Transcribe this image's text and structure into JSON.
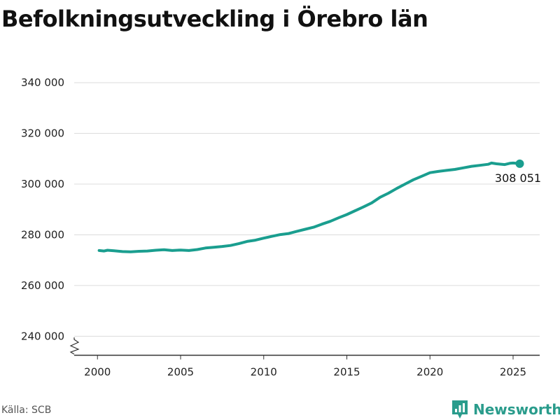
{
  "title": "Befolkningsutveckling i Örebro län",
  "source": "Källa: SCB",
  "brand": {
    "name": "Newsworthy",
    "icon": "newsworthy-logo-icon",
    "color": "#2a9c8c"
  },
  "chart_data": {
    "type": "line",
    "title": "Befolkningsutveckling i Örebro län",
    "xlabel": "",
    "ylabel": "",
    "xlim": [
      1998.6,
      2026.6
    ],
    "ylim": [
      232500,
      345000
    ],
    "y_ticks": [
      240000,
      260000,
      280000,
      300000,
      320000,
      340000
    ],
    "y_tick_labels": [
      "240 000",
      "260 000",
      "280 000",
      "300 000",
      "320 000",
      "340 000"
    ],
    "x_ticks": [
      2000,
      2005,
      2010,
      2015,
      2020,
      2025
    ],
    "x_tick_labels": [
      "2000",
      "2005",
      "2010",
      "2015",
      "2020",
      "2025"
    ],
    "grid": true,
    "axis_break": true,
    "line_color": "#1a9e8f",
    "end_label": "308 051",
    "series": [
      {
        "x": [
          2000.1,
          2000.4,
          2000.6,
          2001.0,
          2001.5,
          2002.0,
          2002.5,
          2003.0,
          2003.5,
          2004.0,
          2004.5,
          2005.0,
          2005.5,
          2006.0,
          2006.5,
          2007.0,
          2007.5,
          2008.0,
          2008.5,
          2009.0,
          2009.5,
          2010.0,
          2010.5,
          2011.0,
          2011.5,
          2012.0,
          2012.5,
          2013.0,
          2013.5,
          2014.0,
          2014.5,
          2015.0,
          2015.5,
          2016.0,
          2016.5,
          2017.0,
          2017.5,
          2018.0,
          2018.5,
          2019.0,
          2019.5,
          2020.0,
          2020.5,
          2021.0,
          2021.5,
          2022.0,
          2022.5,
          2023.0,
          2023.5,
          2023.7,
          2024.0,
          2024.5,
          2024.8,
          2025.0,
          2025.4
        ],
        "y": [
          273800,
          273600,
          273900,
          273700,
          273400,
          273300,
          273500,
          273600,
          273900,
          274100,
          273800,
          274000,
          273800,
          274200,
          274800,
          275100,
          275400,
          275800,
          276500,
          277400,
          277900,
          278700,
          279400,
          280100,
          280500,
          281400,
          282200,
          283000,
          284200,
          285300,
          286700,
          288000,
          289500,
          291000,
          292600,
          294800,
          296400,
          298300,
          300000,
          301700,
          303100,
          304500,
          305000,
          305400,
          305800,
          306400,
          307000,
          307400,
          307800,
          308300,
          308000,
          307700,
          308200,
          308300,
          308051
        ]
      }
    ]
  }
}
